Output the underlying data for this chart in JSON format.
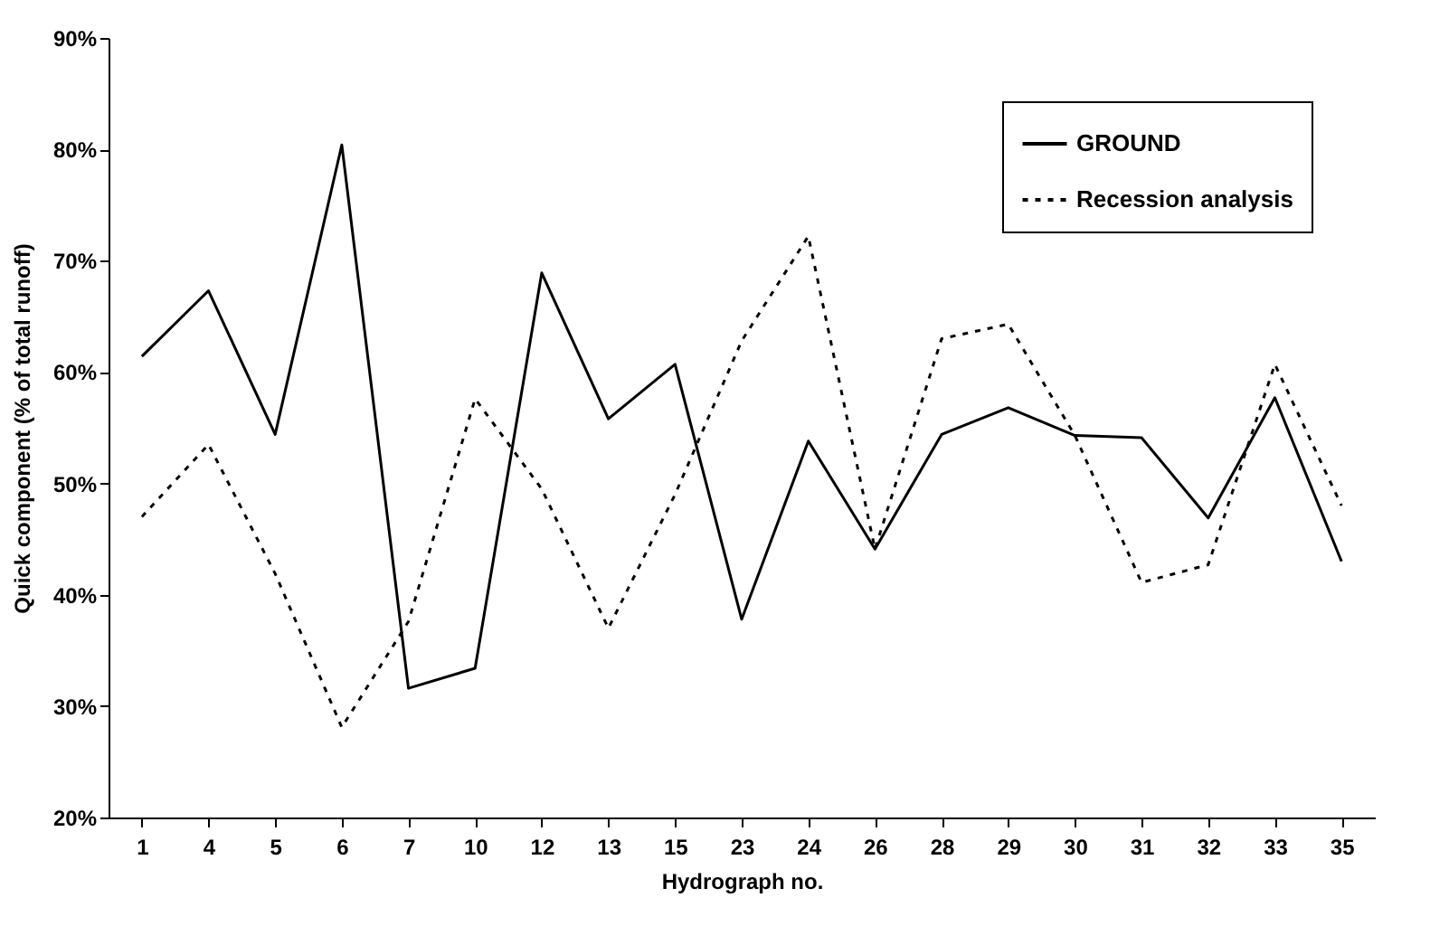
{
  "chart_data": {
    "type": "line",
    "xlabel": "Hydrograph no.",
    "ylabel": "Quick component (% of total runoff)",
    "categories": [
      "1",
      "4",
      "5",
      "6",
      "7",
      "10",
      "12",
      "13",
      "15",
      "23",
      "24",
      "26",
      "28",
      "29",
      "30",
      "31",
      "32",
      "33",
      "35"
    ],
    "series": [
      {
        "name": "GROUND",
        "color": "#000000",
        "line_style": "solid",
        "values": [
          61.4,
          67.3,
          54.4,
          80.4,
          31.6,
          33.4,
          68.9,
          55.8,
          60.7,
          37.8,
          53.8,
          44.1,
          54.4,
          56.8,
          54.3,
          54.1,
          46.9,
          57.7,
          43.0
        ]
      },
      {
        "name": "Recession analysis",
        "color": "#000000",
        "line_style": "dotted",
        "values": [
          47.0,
          53.5,
          41.9,
          28.1,
          37.6,
          57.6,
          49.5,
          37.0,
          49.0,
          62.8,
          72.2,
          44.1,
          63.0,
          64.3,
          54.3,
          41.1,
          42.7,
          60.7,
          48.0
        ]
      }
    ],
    "ylim": [
      20,
      90
    ],
    "yticks": [
      {
        "value": 20,
        "label": "20%"
      },
      {
        "value": 30,
        "label": "30%"
      },
      {
        "value": 40,
        "label": "40%"
      },
      {
        "value": 50,
        "label": "50%"
      },
      {
        "value": 60,
        "label": "60%"
      },
      {
        "value": 70,
        "label": "70%"
      },
      {
        "value": 80,
        "label": "80%"
      },
      {
        "value": 90,
        "label": "90%"
      }
    ],
    "grid": false,
    "legend": "top right",
    "marker": "none"
  }
}
